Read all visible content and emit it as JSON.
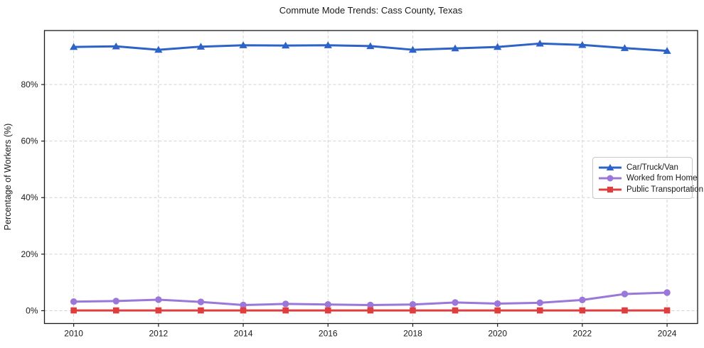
{
  "chart_data": {
    "type": "line",
    "title": "Commute Mode Trends: Cass County, Texas",
    "xlabel": "",
    "ylabel": "Percentage of Workers (%)",
    "x": [
      2010,
      2011,
      2012,
      2013,
      2014,
      2015,
      2016,
      2017,
      2018,
      2019,
      2020,
      2021,
      2022,
      2023,
      2024
    ],
    "series": [
      {
        "name": "Car/Truck/Van",
        "color": "#2d62c6",
        "marker": "triangle",
        "values": [
          93.3,
          93.5,
          92.3,
          93.4,
          93.9,
          93.8,
          93.9,
          93.6,
          92.3,
          92.8,
          93.3,
          94.5,
          94.0,
          92.9,
          91.9
        ]
      },
      {
        "name": "Worked from Home",
        "color": "#9a77d8",
        "marker": "circle",
        "values": [
          3.2,
          3.4,
          3.9,
          3.1,
          2.0,
          2.4,
          2.2,
          2.0,
          2.2,
          2.9,
          2.5,
          2.8,
          3.8,
          5.9,
          6.4
        ]
      },
      {
        "name": "Public Transportation",
        "color": "#e03e3e",
        "marker": "square",
        "values": [
          0.1,
          0.1,
          0.1,
          0.1,
          0.1,
          0.1,
          0.1,
          0.1,
          0.1,
          0.1,
          0.1,
          0.1,
          0.1,
          0.1,
          0.1
        ]
      }
    ],
    "x_ticks": [
      2010,
      2012,
      2014,
      2016,
      2018,
      2020,
      2022,
      2024
    ],
    "x_tick_labels": [
      "2010",
      "2012",
      "2014",
      "2016",
      "2018",
      "2020",
      "2022",
      "2024"
    ],
    "y_ticks": [
      0,
      20,
      40,
      60,
      80
    ],
    "y_tick_labels": [
      "0%",
      "20%",
      "40%",
      "60%",
      "80%"
    ],
    "xlim": [
      2009.31,
      2024.72
    ],
    "ylim": [
      -4.53,
      99.1
    ],
    "grid": true,
    "grid_color": "#d2d2d2",
    "axis_color": "#1a1a1a",
    "legend_position": "center-right"
  }
}
